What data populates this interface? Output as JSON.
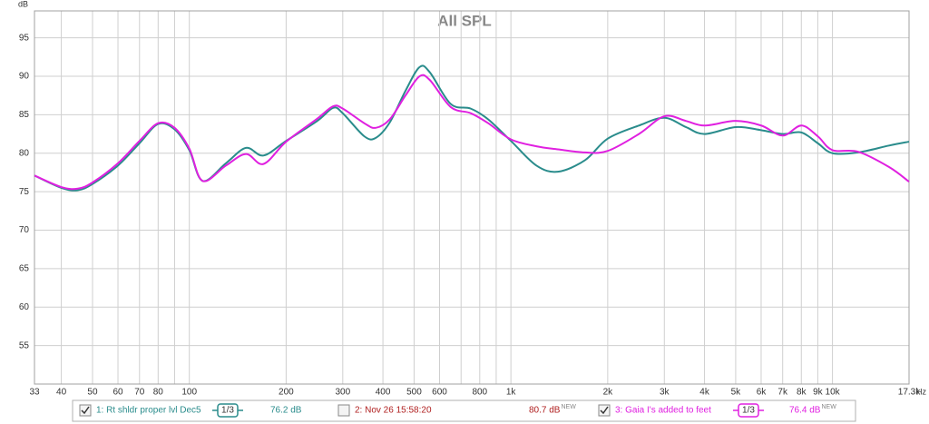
{
  "chart_data": {
    "type": "line",
    "title": "All SPL",
    "y_label": "dB",
    "x_label": "Hz",
    "log_x": true,
    "grid": true,
    "xlim": [
      33,
      17300
    ],
    "ylim": [
      50,
      98.5
    ],
    "yticks": [
      55,
      60,
      65,
      70,
      75,
      80,
      85,
      90,
      95
    ],
    "xticks": [
      33,
      40,
      50,
      60,
      70,
      80,
      100,
      200,
      300,
      400,
      500,
      600,
      800,
      {
        "value": 1000,
        "label": "1k"
      },
      {
        "value": 2000,
        "label": "2k"
      },
      {
        "value": 3000,
        "label": "3k"
      },
      {
        "value": 4000,
        "label": "4k"
      },
      {
        "value": 5000,
        "label": "5k"
      },
      {
        "value": 6000,
        "label": "6k"
      },
      {
        "value": 7000,
        "label": "7k"
      },
      {
        "value": 8000,
        "label": "8k"
      },
      {
        "value": 9000,
        "label": "9k"
      },
      {
        "value": 10000,
        "label": "10k"
      },
      {
        "value": 17300,
        "label": "17.3k"
      }
    ],
    "minor_xticks": [
      90,
      700,
      900
    ],
    "x": [
      33,
      40,
      45,
      50,
      60,
      70,
      80,
      90,
      100,
      110,
      130,
      150,
      170,
      200,
      250,
      280,
      300,
      350,
      380,
      420,
      470,
      520,
      560,
      650,
      750,
      850,
      1000,
      1200,
      1400,
      1700,
      2000,
      2500,
      3000,
      3500,
      4000,
      5000,
      6000,
      7000,
      8000,
      9000,
      10000,
      12000,
      15000,
      17300
    ],
    "series": [
      {
        "name": "1: Rt shldr proper lvl Dec5",
        "color": "#2a8c8c",
        "checked": true,
        "smoothing": "1/3",
        "level": "76.2 dB",
        "values": [
          77.1,
          75.5,
          75.2,
          76.0,
          78.4,
          81.3,
          83.8,
          83.1,
          80.4,
          76.4,
          78.7,
          80.7,
          79.7,
          81.6,
          84.2,
          85.9,
          85.2,
          82.2,
          82.0,
          84.0,
          88.1,
          91.2,
          90.5,
          86.4,
          85.8,
          84.4,
          81.6,
          78.4,
          77.6,
          79.1,
          81.9,
          83.6,
          84.6,
          83.4,
          82.5,
          83.4,
          83.0,
          82.5,
          82.7,
          81.3,
          80.0,
          80.1,
          81.0,
          81.5
        ]
      },
      {
        "name": "2: Nov 26 15:58:20",
        "color": "#b02020",
        "checked": false,
        "level": "80.7 dB",
        "badge": "NEW"
      },
      {
        "name": "3: Gaia I's added to feet",
        "color": "#e020e0",
        "checked": true,
        "smoothing": "1/3",
        "level": "76.4 dB",
        "badge": "NEW",
        "values": [
          77.1,
          75.6,
          75.4,
          76.2,
          78.7,
          81.6,
          83.9,
          83.3,
          80.6,
          76.4,
          78.4,
          79.9,
          78.6,
          81.5,
          84.5,
          86.1,
          85.8,
          83.9,
          83.3,
          84.4,
          87.5,
          90.0,
          89.5,
          86.0,
          85.2,
          83.9,
          81.8,
          80.9,
          80.5,
          80.1,
          80.3,
          82.5,
          84.8,
          84.2,
          83.6,
          84.2,
          83.6,
          82.3,
          83.6,
          82.2,
          80.4,
          80.2,
          78.2,
          76.3
        ]
      }
    ]
  }
}
